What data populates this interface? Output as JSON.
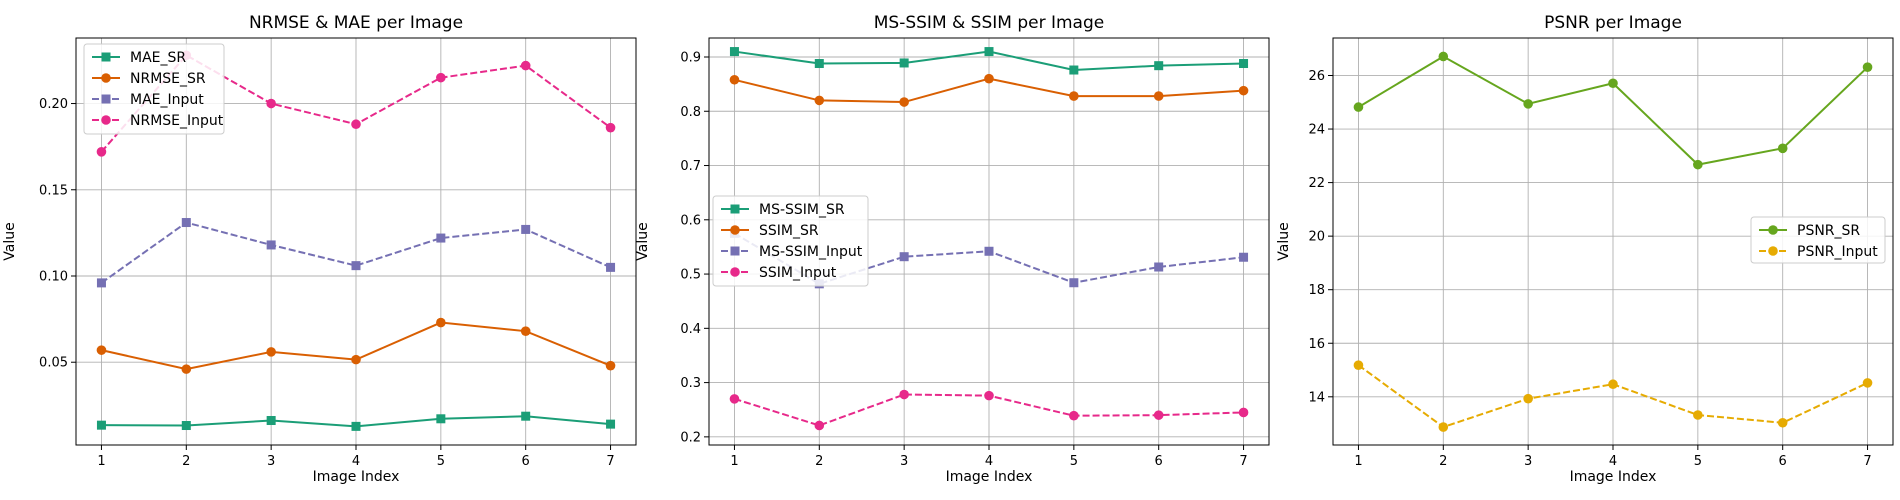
{
  "chart_data": [
    {
      "type": "line",
      "title": "NRMSE & MAE per Image",
      "xlabel": "Image Index",
      "ylabel": "Value",
      "x": [
        1,
        2,
        3,
        4,
        5,
        6,
        7
      ],
      "xlim": [
        0.7,
        7.3
      ],
      "ylim": [
        0.002,
        0.238
      ],
      "yticks": [
        0.05,
        0.1,
        0.15,
        0.2
      ],
      "ytick_labels": [
        "0.05",
        "0.10",
        "0.15",
        "0.20"
      ],
      "grid": true,
      "legend_position": "top-left",
      "series": [
        {
          "name": "MAE_SR",
          "values": [
            0.0135,
            0.0133,
            0.0162,
            0.0128,
            0.0172,
            0.0187,
            0.0141
          ],
          "color": "#1b9e77",
          "marker": "square",
          "dash": "solid"
        },
        {
          "name": "NRMSE_SR",
          "values": [
            0.057,
            0.046,
            0.056,
            0.0515,
            0.073,
            0.068,
            0.048
          ],
          "color": "#d95f02",
          "marker": "circle",
          "dash": "solid"
        },
        {
          "name": "MAE_Input",
          "values": [
            0.096,
            0.131,
            0.118,
            0.106,
            0.122,
            0.127,
            0.105
          ],
          "color": "#7570b3",
          "marker": "square",
          "dash": "dashed"
        },
        {
          "name": "NRMSE_Input",
          "values": [
            0.172,
            0.228,
            0.2,
            0.188,
            0.215,
            0.222,
            0.186
          ],
          "color": "#e7298a",
          "marker": "circle",
          "dash": "dashed"
        }
      ]
    },
    {
      "type": "line",
      "title": "MS-SSIM & SSIM per Image",
      "xlabel": "Image Index",
      "ylabel": "Value",
      "x": [
        1,
        2,
        3,
        4,
        5,
        6,
        7
      ],
      "xlim": [
        0.7,
        7.3
      ],
      "ylim": [
        0.185,
        0.935
      ],
      "yticks": [
        0.2,
        0.3,
        0.4,
        0.5,
        0.6,
        0.7,
        0.8,
        0.9
      ],
      "ytick_labels": [
        "0.2",
        "0.3",
        "0.4",
        "0.5",
        "0.6",
        "0.7",
        "0.8",
        "0.9"
      ],
      "grid": true,
      "legend_position": "center-left",
      "series": [
        {
          "name": "MS-SSIM_SR",
          "values": [
            0.91,
            0.888,
            0.889,
            0.91,
            0.876,
            0.884,
            0.888
          ],
          "color": "#1b9e77",
          "marker": "square",
          "dash": "solid"
        },
        {
          "name": "SSIM_SR",
          "values": [
            0.858,
            0.82,
            0.817,
            0.86,
            0.828,
            0.828,
            0.838
          ],
          "color": "#d95f02",
          "marker": "circle",
          "dash": "solid"
        },
        {
          "name": "MS-SSIM_Input",
          "values": [
            0.575,
            0.482,
            0.532,
            0.542,
            0.484,
            0.513,
            0.531
          ],
          "color": "#7570b3",
          "marker": "square",
          "dash": "dashed"
        },
        {
          "name": "SSIM_Input",
          "values": [
            0.27,
            0.221,
            0.278,
            0.276,
            0.239,
            0.24,
            0.245
          ],
          "color": "#e7298a",
          "marker": "circle",
          "dash": "dashed"
        }
      ]
    },
    {
      "type": "line",
      "title": "PSNR per Image",
      "xlabel": "Image Index",
      "ylabel": "Value",
      "x": [
        1,
        2,
        3,
        4,
        5,
        6,
        7
      ],
      "xlim": [
        0.7,
        7.3
      ],
      "ylim": [
        12.2,
        27.4
      ],
      "yticks": [
        14,
        16,
        18,
        20,
        22,
        24,
        26
      ],
      "ytick_labels": [
        "14",
        "16",
        "18",
        "20",
        "22",
        "24",
        "26"
      ],
      "grid": true,
      "legend_position": "center-right",
      "series": [
        {
          "name": "PSNR_SR",
          "values": [
            24.82,
            26.71,
            24.94,
            25.71,
            22.67,
            23.28,
            26.31
          ],
          "color": "#66a61e",
          "marker": "circle",
          "dash": "solid"
        },
        {
          "name": "PSNR_Input",
          "values": [
            15.18,
            12.87,
            13.93,
            14.47,
            13.32,
            13.03,
            14.52
          ],
          "color": "#e6ab02",
          "marker": "circle",
          "dash": "dashed"
        }
      ]
    }
  ]
}
